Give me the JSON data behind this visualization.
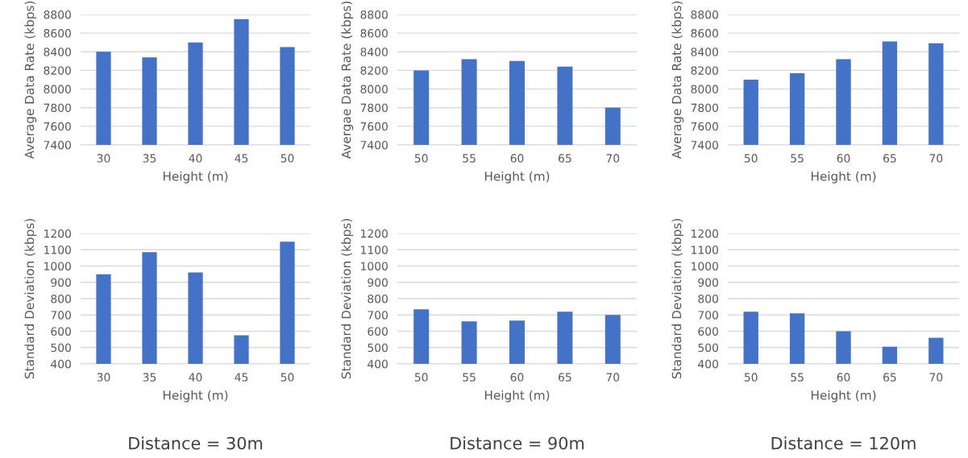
{
  "chart_data": [
    {
      "type": "bar",
      "categories": [
        "30",
        "35",
        "40",
        "45",
        "50"
      ],
      "values": [
        8400,
        8340,
        8500,
        8750,
        8450
      ],
      "color": "#4472c4",
      "xlabel": "Height (m)",
      "ylabel": "Average Data Rate (kbps)",
      "ylim": [
        7400,
        8800
      ],
      "yticks": [
        7400,
        7600,
        7800,
        8000,
        8200,
        8400,
        8600,
        8800
      ],
      "grid": "y"
    },
    {
      "type": "bar",
      "categories": [
        "50",
        "55",
        "60",
        "65",
        "70"
      ],
      "values": [
        8200,
        8320,
        8300,
        8240,
        7800
      ],
      "color": "#4472c4",
      "xlabel": "Height (m)",
      "ylabel": "Avergae Data Rate (kbps)",
      "ylim": [
        7400,
        8800
      ],
      "yticks": [
        7400,
        7600,
        7800,
        8000,
        8200,
        8400,
        8600,
        8800
      ],
      "grid": "y"
    },
    {
      "type": "bar",
      "categories": [
        "50",
        "55",
        "60",
        "65",
        "70"
      ],
      "values": [
        8100,
        8170,
        8320,
        8510,
        8490
      ],
      "color": "#4472c4",
      "xlabel": "Height (m)",
      "ylabel": "Average Data Rate (kbps)",
      "ylim": [
        7400,
        8800
      ],
      "yticks": [
        7400,
        7600,
        7800,
        8000,
        8200,
        8400,
        8600,
        8800
      ],
      "grid": "y"
    },
    {
      "type": "bar",
      "categories": [
        "30",
        "35",
        "40",
        "45",
        "50"
      ],
      "values": [
        950,
        1085,
        960,
        575,
        1150
      ],
      "color": "#4472c4",
      "xlabel": "Height (m)",
      "ylabel": "Standard Deviation (kbps)",
      "ylim": [
        400,
        1200
      ],
      "yticks": [
        400,
        500,
        600,
        700,
        800,
        900,
        1000,
        1100,
        1200
      ],
      "grid": "y",
      "annotations": [
        "Distance = 30m"
      ]
    },
    {
      "type": "bar",
      "categories": [
        "50",
        "55",
        "60",
        "65",
        "70"
      ],
      "values": [
        735,
        660,
        665,
        720,
        700
      ],
      "color": "#4472c4",
      "xlabel": "Height (m)",
      "ylabel": "Standard Deviation (kbps)",
      "ylim": [
        400,
        1200
      ],
      "yticks": [
        400,
        500,
        600,
        700,
        800,
        900,
        1000,
        1100,
        1200
      ],
      "grid": "y",
      "annotations": [
        "Distance = 90m"
      ]
    },
    {
      "type": "bar",
      "categories": [
        "50",
        "55",
        "60",
        "65",
        "70"
      ],
      "values": [
        720,
        710,
        600,
        505,
        560
      ],
      "color": "#4472c4",
      "xlabel": "Height (m)",
      "ylabel": "Standard Deviation (kbps)",
      "ylim": [
        400,
        1200
      ],
      "yticks": [
        400,
        500,
        600,
        700,
        800,
        900,
        1000,
        1100,
        1200
      ],
      "grid": "y",
      "annotations": [
        "Distance = 120m"
      ]
    }
  ]
}
